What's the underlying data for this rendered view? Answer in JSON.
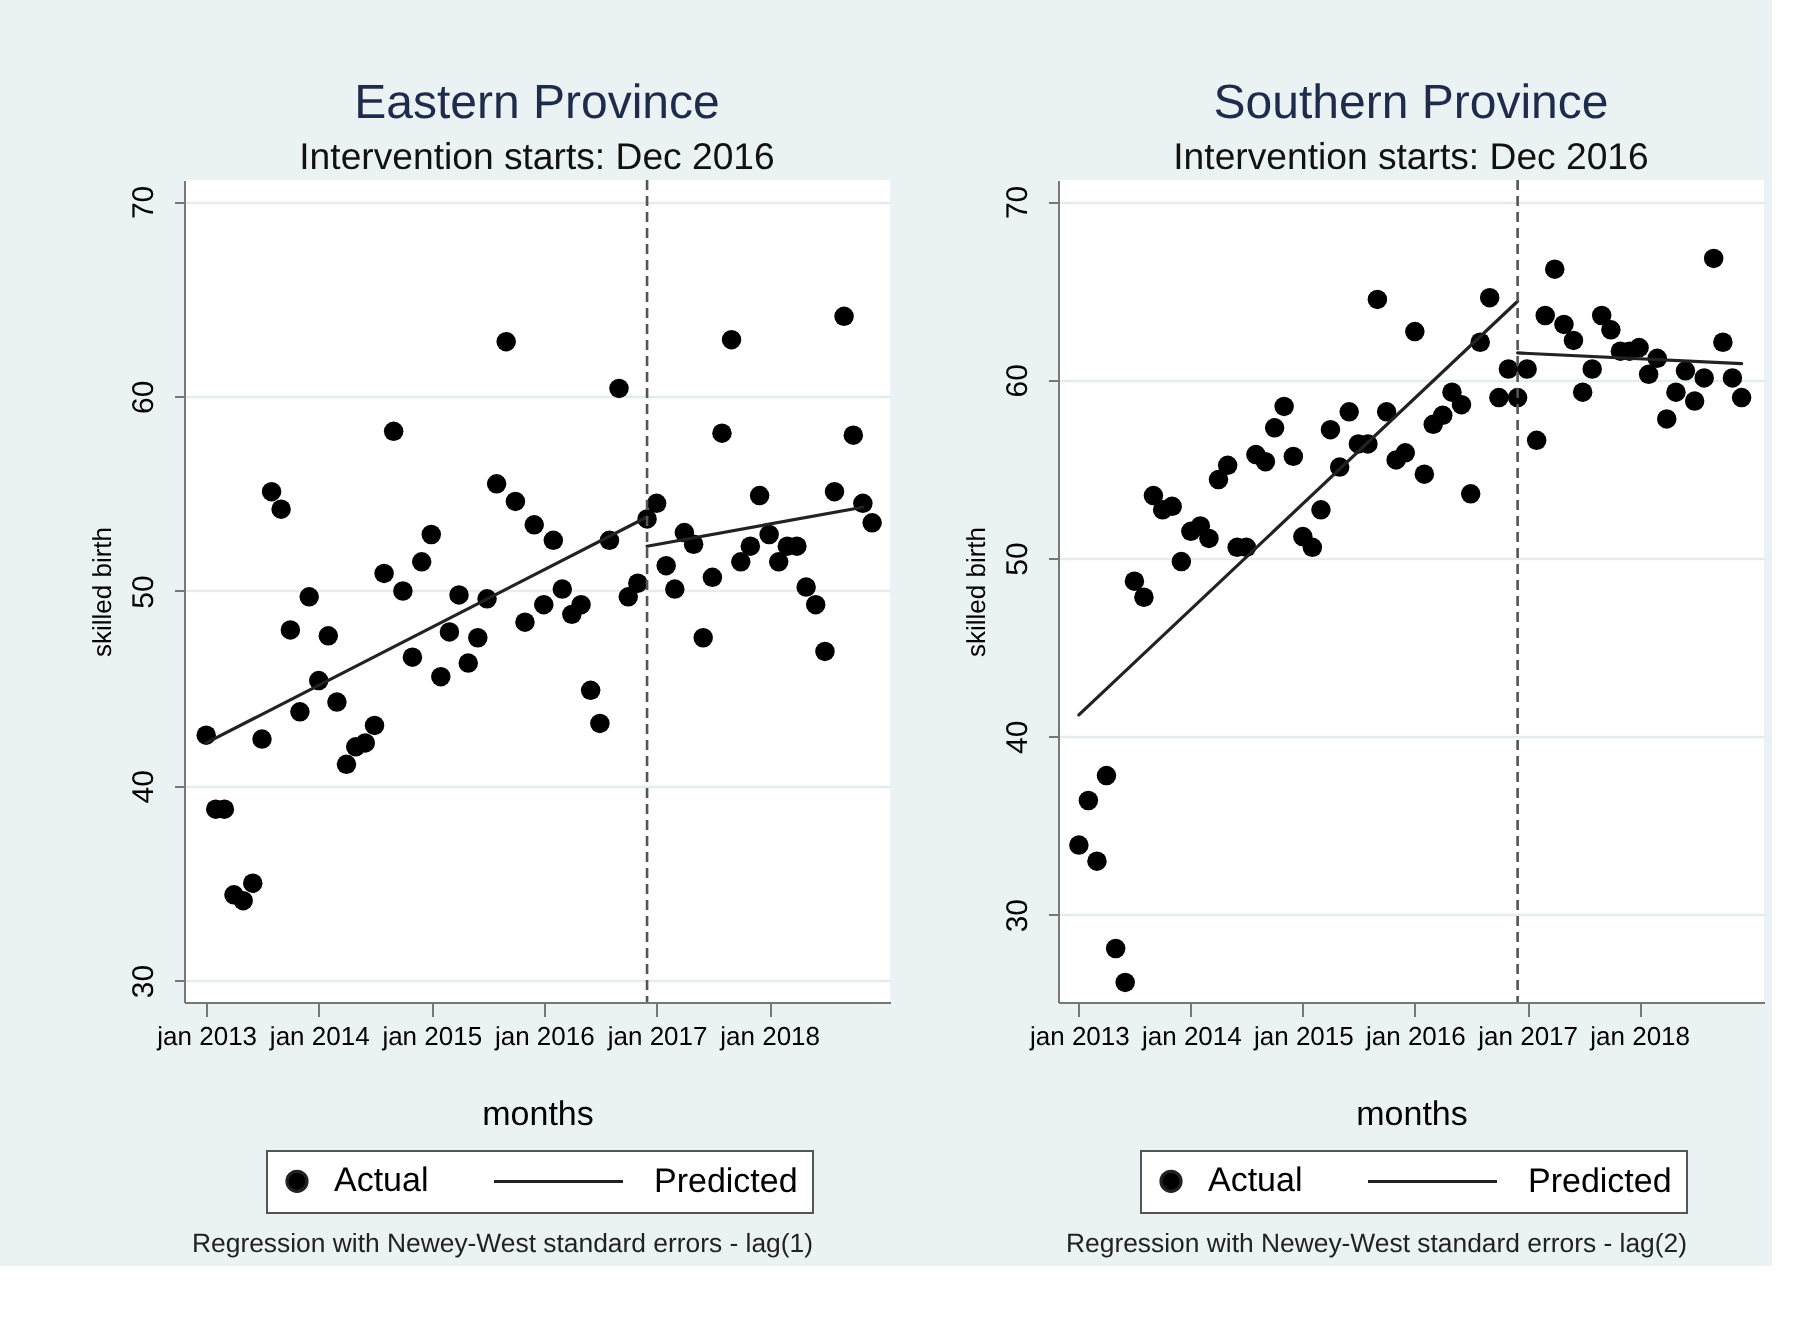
{
  "chart_data": [
    {
      "type": "scatter",
      "title": "Eastern Province",
      "subtitle": "Intervention starts: Dec 2016",
      "xlabel": "months",
      "ylabel": "skilled birth",
      "series": [
        {
          "name": "Actual",
          "marker": "circle",
          "color": "#000000",
          "x": [
            "2013-01",
            "2013-02",
            "2013-03",
            "2013-04",
            "2013-05",
            "2013-06",
            "2013-07",
            "2013-08",
            "2013-09",
            "2013-10",
            "2013-11",
            "2013-12",
            "2014-01",
            "2014-02",
            "2014-03",
            "2014-04",
            "2014-05",
            "2014-06",
            "2014-07",
            "2014-08",
            "2014-09",
            "2014-10",
            "2014-11",
            "2014-12",
            "2015-01",
            "2015-02",
            "2015-03",
            "2015-04",
            "2015-05",
            "2015-06",
            "2015-07",
            "2015-08",
            "2015-09",
            "2015-10",
            "2015-11",
            "2015-12",
            "2016-01",
            "2016-02",
            "2016-03",
            "2016-04",
            "2016-05",
            "2016-06",
            "2016-07",
            "2016-08",
            "2016-09",
            "2016-10",
            "2016-11",
            "2016-12",
            "2017-01",
            "2017-02",
            "2017-03",
            "2017-04",
            "2017-05",
            "2017-06",
            "2017-07",
            "2017-08",
            "2017-09",
            "2017-10",
            "2017-11",
            "2017-12",
            "2018-01",
            "2018-02",
            "2018-03",
            "2018-04",
            "2018-05",
            "2018-06",
            "2018-07",
            "2018-08",
            "2018-09",
            "2018-10",
            "2018-11",
            "2018-12"
          ],
          "values": [
            42.6,
            38.8,
            38.8,
            34.4,
            34.1,
            35.0,
            42.4,
            55.1,
            54.2,
            48.0,
            43.8,
            49.7,
            45.4,
            47.7,
            44.3,
            41.1,
            42.0,
            42.2,
            43.1,
            50.9,
            58.2,
            50.0,
            46.6,
            51.5,
            52.9,
            45.6,
            47.9,
            49.8,
            46.3,
            47.6,
            49.6,
            55.5,
            62.8,
            54.6,
            48.4,
            53.4,
            49.3,
            52.6,
            50.1,
            48.8,
            49.3,
            44.9,
            43.2,
            52.6,
            60.4,
            49.7,
            50.4,
            53.7,
            54.5,
            51.3,
            50.1,
            53.0,
            52.4,
            47.6,
            50.7,
            58.1,
            62.9,
            51.5,
            52.3,
            54.9,
            52.9,
            51.5,
            52.3,
            52.3,
            50.2,
            49.3,
            46.9,
            55.1,
            64.1,
            58.0,
            54.5,
            53.5
          ]
        },
        {
          "name": "Predicted",
          "type": "line",
          "color": "#222222",
          "x": [
            "2013-01",
            "2016-12"
          ],
          "values": [
            42.2,
            53.8
          ]
        },
        {
          "type": "line",
          "color": "#222222",
          "x": [
            "2016-12",
            "2018-11"
          ],
          "values": [
            52.3,
            54.3
          ]
        }
      ],
      "xlim": [
        "2012-10-21",
        "2019-01-28"
      ],
      "xticks": [
        {
          "value": "2013-01",
          "label": "jan 2013"
        },
        {
          "value": "2014-01",
          "label": "jan 2014"
        },
        {
          "value": "2015-01",
          "label": "jan 2015"
        },
        {
          "value": "2016-01",
          "label": "jan 2016"
        },
        {
          "value": "2017-01",
          "label": "jan 2017"
        },
        {
          "value": "2018-01",
          "label": "jan 2018"
        }
      ],
      "ylim": [
        28.9,
        71.1
      ],
      "yticks": [
        30,
        40,
        50,
        60,
        70
      ],
      "grid": "y",
      "legend": "bottom",
      "ref_lines": [
        {
          "axis": "x",
          "value": "2016-12",
          "color": "#555555",
          "line_style": "dashed"
        }
      ],
      "annotations": [
        "Regression with Newey-West standard errors - lag(1)"
      ]
    },
    {
      "type": "scatter",
      "title": "Southern Province",
      "subtitle": "Intervention starts: Dec 2016",
      "xlabel": "months",
      "ylabel": "skilled birth",
      "series": [
        {
          "name": "Actual",
          "marker": "circle",
          "color": "#000000",
          "x": [
            "2013-01",
            "2013-02",
            "2013-03",
            "2013-04",
            "2013-05",
            "2013-06",
            "2013-07",
            "2013-08",
            "2013-09",
            "2013-10",
            "2013-11",
            "2013-12",
            "2014-01",
            "2014-02",
            "2014-03",
            "2014-04",
            "2014-05",
            "2014-06",
            "2014-07",
            "2014-08",
            "2014-09",
            "2014-10",
            "2014-11",
            "2014-12",
            "2015-01",
            "2015-02",
            "2015-03",
            "2015-04",
            "2015-05",
            "2015-06",
            "2015-07",
            "2015-08",
            "2015-09",
            "2015-10",
            "2015-11",
            "2015-12",
            "2016-01",
            "2016-02",
            "2016-03",
            "2016-04",
            "2016-05",
            "2016-06",
            "2016-07",
            "2016-08",
            "2016-09",
            "2016-10",
            "2016-11",
            "2016-12",
            "2017-01",
            "2017-02",
            "2017-03",
            "2017-04",
            "2017-05",
            "2017-06",
            "2017-07",
            "2017-08",
            "2017-09",
            "2017-10",
            "2017-11",
            "2017-12",
            "2018-01",
            "2018-02",
            "2018-03",
            "2018-04",
            "2018-05",
            "2018-06",
            "2018-07",
            "2018-08",
            "2018-09",
            "2018-10",
            "2018-11",
            "2018-12"
          ],
          "values": [
            33.9,
            36.4,
            33.0,
            37.8,
            28.1,
            26.2,
            48.7,
            47.8,
            53.5,
            52.7,
            52.9,
            49.8,
            51.5,
            51.8,
            51.1,
            54.4,
            55.2,
            50.6,
            50.6,
            55.8,
            55.4,
            57.3,
            58.5,
            55.7,
            51.2,
            50.6,
            52.7,
            57.2,
            55.1,
            58.2,
            56.4,
            56.4,
            64.5,
            58.2,
            55.5,
            55.9,
            62.7,
            54.7,
            57.5,
            58.0,
            59.3,
            58.6,
            53.6,
            62.1,
            64.6,
            59.0,
            60.6,
            59.0,
            60.6,
            56.6,
            63.6,
            66.2,
            63.1,
            62.2,
            59.3,
            60.6,
            63.6,
            62.8,
            61.6,
            61.6,
            61.8,
            60.3,
            61.2,
            57.8,
            59.3,
            60.5,
            58.8,
            60.1,
            66.8,
            62.1,
            60.1,
            59.0
          ]
        },
        {
          "name": "Predicted",
          "type": "line",
          "color": "#222222",
          "x": [
            "2013-01",
            "2016-12"
          ],
          "values": [
            41.2,
            64.4
          ]
        },
        {
          "type": "line",
          "color": "#222222",
          "x": [
            "2016-12",
            "2018-12"
          ],
          "values": [
            61.5,
            60.9
          ]
        }
      ],
      "xlim": [
        "2012-10-25",
        "2019-02-12"
      ],
      "xticks": [
        {
          "value": "2013-01",
          "label": "jan 2013"
        },
        {
          "value": "2014-01",
          "label": "jan 2014"
        },
        {
          "value": "2015-01",
          "label": "jan 2015"
        },
        {
          "value": "2016-01",
          "label": "jan 2016"
        },
        {
          "value": "2017-01",
          "label": "jan 2017"
        },
        {
          "value": "2018-01",
          "label": "jan 2018"
        }
      ],
      "ylim": [
        25.1,
        71.2
      ],
      "yticks": [
        30,
        40,
        50,
        60,
        70
      ],
      "grid": "y",
      "legend": "bottom",
      "ref_lines": [
        {
          "axis": "x",
          "value": "2016-12",
          "color": "#555555",
          "line_style": "dashed"
        }
      ],
      "annotations": [
        "Regression with Newey-West standard errors - lag(2)"
      ]
    }
  ]
}
